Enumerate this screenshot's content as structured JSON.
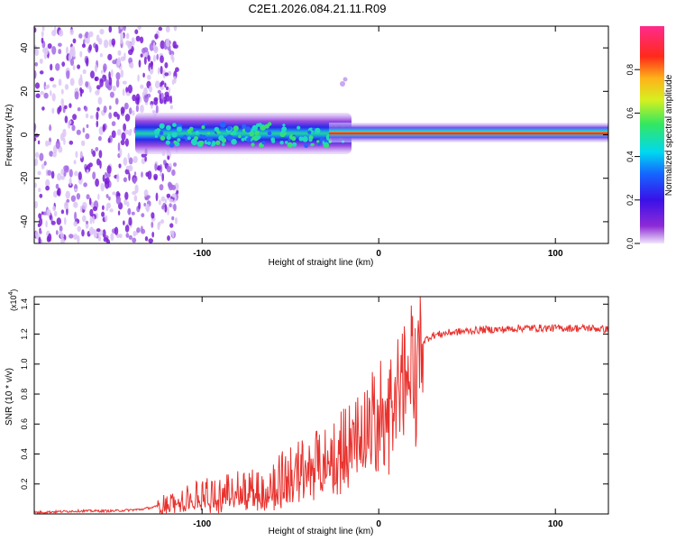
{
  "title": "C2E1.2026.084.21.11.R09",
  "chart_data": [
    {
      "type": "heatmap",
      "title": "C2E1.2026.084.21.11.R09",
      "xlabel": "Height of straight line (km)",
      "ylabel": "Frequency (Hz)",
      "xlim": [
        -195,
        130
      ],
      "ylim": [
        -50,
        50
      ],
      "x_ticks": [
        -100,
        0,
        100
      ],
      "y_ticks": [
        -40,
        -20,
        0,
        20,
        40
      ],
      "colorbar": {
        "label": "Normalized spectral amplitude",
        "range": [
          0,
          1
        ],
        "ticks": [
          0.0,
          0.2,
          0.4,
          0.6,
          0.8
        ]
      },
      "description_regions": [
        {
          "x_range": [
            -195,
            -120
          ],
          "freq_range": [
            -50,
            50
          ],
          "amplitude": 0.15
        },
        {
          "x_range": [
            -135,
            -20
          ],
          "freq_range": [
            -9,
            9
          ],
          "amplitude": 0.45
        },
        {
          "x_range": [
            -20,
            130
          ],
          "freq_range": [
            -4,
            4
          ],
          "amplitude": 0.6
        },
        {
          "x_range": [
            -20,
            130
          ],
          "freq_range": [
            -1,
            1
          ],
          "amplitude": 0.95
        }
      ]
    },
    {
      "type": "line",
      "xlabel": "Height of straight line (km)",
      "ylabel": "SNR (10 * v/v)",
      "y_scale_label": "(x10",
      "y_scale_exponent": "4",
      "y_scale_suffix": ")",
      "xlim": [
        -195,
        130
      ],
      "ylim": [
        0,
        1.45
      ],
      "x_ticks": [
        -100,
        0,
        100
      ],
      "y_ticks": [
        0.2,
        0.4,
        0.6,
        0.8,
        1.0,
        1.2,
        1.4
      ],
      "series": [
        {
          "name": "SNR",
          "color": "#e8322e",
          "x": [
            -195,
            -170,
            -150,
            -135,
            -125,
            -120,
            -110,
            -100,
            -90,
            -80,
            -70,
            -60,
            -50,
            -40,
            -30,
            -20,
            -15,
            -10,
            -5,
            0,
            5,
            10,
            12,
            15,
            20,
            25,
            30,
            40,
            50,
            60,
            70,
            80,
            90,
            100,
            110,
            120,
            130
          ],
          "y": [
            0.01,
            0.02,
            0.02,
            0.03,
            0.05,
            0.07,
            0.1,
            0.12,
            0.13,
            0.15,
            0.18,
            0.2,
            0.25,
            0.3,
            0.38,
            0.45,
            0.5,
            0.55,
            0.65,
            0.72,
            0.8,
            0.9,
            0.8,
            1.0,
            1.1,
            1.15,
            1.19,
            1.21,
            1.22,
            1.23,
            1.23,
            1.24,
            1.24,
            1.24,
            1.24,
            1.24,
            1.23
          ]
        }
      ]
    }
  ]
}
